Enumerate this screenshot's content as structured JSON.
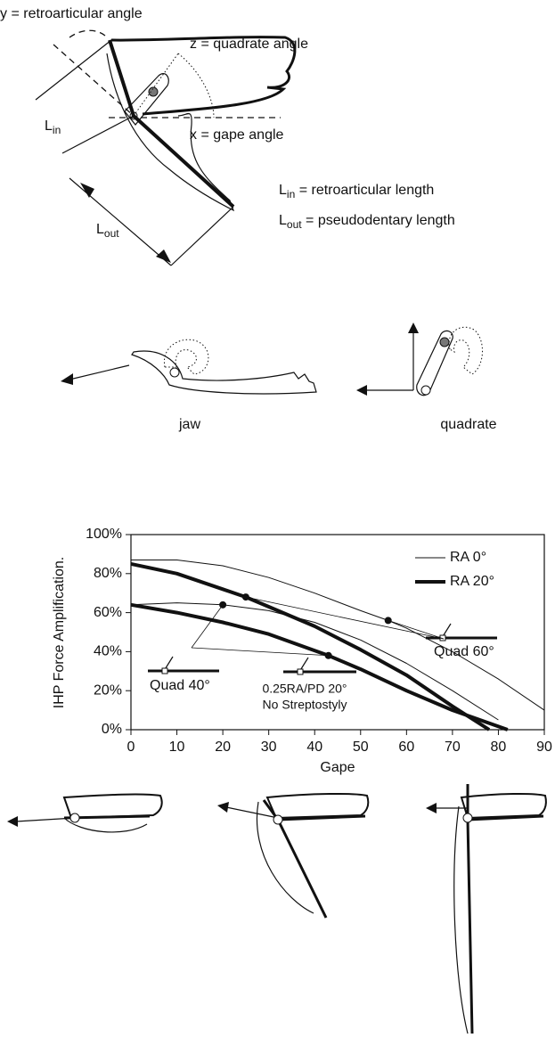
{
  "diagram": {
    "labels": {
      "retroarticular_angle": "y = retroarticular angle",
      "quadrate_angle": "z = quadrate angle",
      "gape_angle": "x = gape angle",
      "l_in": {
        "main": "L",
        "sub": "in"
      },
      "l_out": {
        "main": "L",
        "sub": "out"
      },
      "l_in_def": {
        "main": "L",
        "sub": "in",
        "rest": " = retroarticular length"
      },
      "l_out_def": {
        "main": "L",
        "sub": "out",
        "rest": " = pseudodentary length"
      },
      "jaw": "jaw",
      "quadrate": "quadrate"
    }
  },
  "chart_data": {
    "type": "line",
    "x_label": "Gape",
    "y_label": "IHP Force Amplification.",
    "xlim": [
      0,
      90
    ],
    "xticks": [
      0,
      10,
      20,
      30,
      40,
      50,
      60,
      70,
      80,
      90
    ],
    "ylim": [
      0,
      100
    ],
    "yticks": [
      {
        "value": 0,
        "label": "0%"
      },
      {
        "value": 20,
        "label": "20%"
      },
      {
        "value": 40,
        "label": "40%"
      },
      {
        "value": 60,
        "label": "60%"
      },
      {
        "value": 80,
        "label": "80%"
      },
      {
        "value": 100,
        "label": "100%"
      }
    ],
    "legend": "top-right",
    "series": [
      {
        "name": "RA 0°",
        "color": "#111111",
        "width": 1,
        "x": [
          0,
          10,
          20,
          30,
          40,
          50,
          56,
          60,
          70,
          80,
          90
        ],
        "values": [
          87,
          87,
          84,
          78,
          70,
          61,
          56,
          52,
          40,
          26,
          10
        ]
      },
      {
        "name": "RA 20°",
        "color": "#111111",
        "width": 4,
        "x": [
          0,
          10,
          20,
          25,
          30,
          40,
          50,
          60,
          70,
          78
        ],
        "values": [
          85,
          80,
          72,
          68,
          63,
          53,
          41,
          28,
          12,
          0
        ]
      },
      {
        "name": "RA 0°",
        "color": "#111111",
        "width": 1,
        "x": [
          0,
          10,
          20,
          30,
          40,
          50,
          60,
          70,
          80
        ],
        "values": [
          64,
          65,
          64,
          61,
          55,
          46,
          34,
          20,
          5
        ]
      },
      {
        "name": "RA 20°",
        "color": "#111111",
        "width": 4,
        "x": [
          0,
          10,
          20,
          30,
          43,
          50,
          60,
          70,
          82
        ],
        "values": [
          64,
          60,
          55,
          49,
          38,
          31,
          20,
          10,
          0
        ]
      }
    ],
    "annotations": [
      {
        "text": "Quad 60°",
        "points": [
          {
            "x": 25,
            "y": 68
          },
          {
            "x": 56,
            "y": 56
          }
        ]
      },
      {
        "text": "Quad 40°",
        "points": [
          {
            "x": 20,
            "y": 64
          },
          {
            "x": 43,
            "y": 38
          }
        ]
      },
      {
        "lines": [
          "0.25RA/PD 20°",
          "No Streptostyly"
        ]
      }
    ]
  }
}
